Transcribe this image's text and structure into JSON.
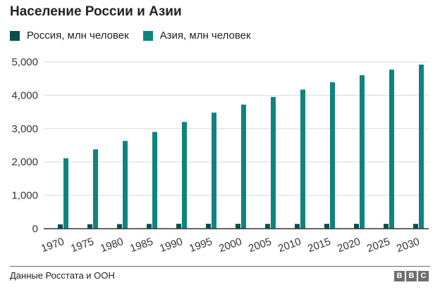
{
  "title": "Население России и Азии",
  "source": "Данные Росстата и ООН",
  "logo": [
    "B",
    "B",
    "C"
  ],
  "colors": {
    "russia": "#0c4e4c",
    "asia": "#0e847f",
    "grid": "#d9d9d9",
    "axis": "#333333"
  },
  "chart_data": {
    "type": "bar",
    "title": "Население России и Азии",
    "xlabel": "",
    "ylabel": "",
    "categories": [
      "1970",
      "1975",
      "1980",
      "1985",
      "1990",
      "1995",
      "2000",
      "2005",
      "2010",
      "2015",
      "2020",
      "2025",
      "2030"
    ],
    "series": [
      {
        "name": "Россия, млн человек",
        "values": [
          130,
          134,
          138,
          143,
          148,
          148,
          146,
          143,
          143,
          146,
          146,
          145,
          143
        ]
      },
      {
        "name": "Азия, млн человек",
        "values": [
          2110,
          2380,
          2630,
          2900,
          3200,
          3480,
          3720,
          3950,
          4170,
          4390,
          4600,
          4770,
          4920
        ]
      }
    ],
    "ylim": [
      0,
      5000
    ],
    "yticks": [
      0,
      1000,
      2000,
      3000,
      4000,
      5000
    ],
    "ytick_labels": [
      "0",
      "1,000",
      "2,000",
      "3,000",
      "4,000",
      "5,000"
    ],
    "grid": true,
    "legend": "top-left"
  }
}
